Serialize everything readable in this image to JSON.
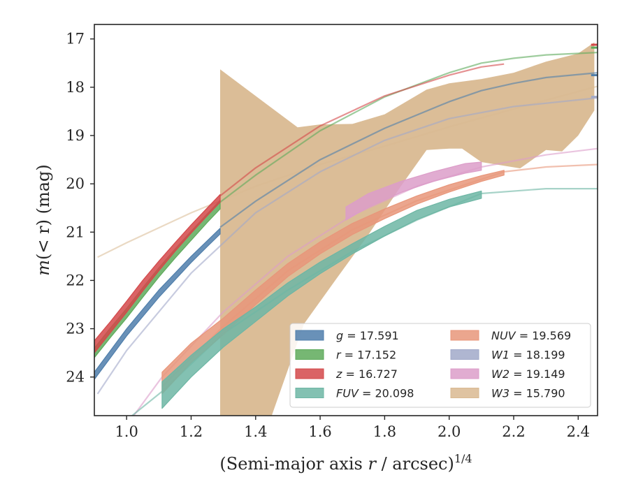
{
  "chart_data": {
    "type": "area",
    "xlabel_main": "(Semi-major axis ",
    "xlabel_var": "r",
    "xlabel_unit": " / arcsec)",
    "xlabel_exp": "1/4",
    "ylabel_main": "m",
    "ylabel_rest": "(< r) (mag)",
    "xlim": [
      0.9,
      2.46
    ],
    "ylim": [
      24.8,
      16.7
    ],
    "y_inverted": true,
    "grid": false,
    "legend_position": "lower-right",
    "x_ticks": [
      {
        "v": 1.0,
        "label": "1.0"
      },
      {
        "v": 1.2,
        "label": "1.2"
      },
      {
        "v": 1.4,
        "label": "1.4"
      },
      {
        "v": 1.6,
        "label": "1.6"
      },
      {
        "v": 1.8,
        "label": "1.8"
      },
      {
        "v": 2.0,
        "label": "2.0"
      },
      {
        "v": 2.2,
        "label": "2.2"
      },
      {
        "v": 2.4,
        "label": "2.4"
      }
    ],
    "y_ticks": [
      {
        "v": 17,
        "label": "17"
      },
      {
        "v": 18,
        "label": "18"
      },
      {
        "v": 19,
        "label": "19"
      },
      {
        "v": 20,
        "label": "20"
      },
      {
        "v": 21,
        "label": "21"
      },
      {
        "v": 22,
        "label": "22"
      },
      {
        "v": 23,
        "label": "23"
      },
      {
        "v": 24,
        "label": "24"
      }
    ],
    "series": [
      {
        "key": "W3",
        "legend_var": "W3",
        "legend_value": "= 15.790",
        "color": "#d9b991",
        "model": [
          [
            0.91,
            21.52
          ],
          [
            1.0,
            21.22
          ],
          [
            1.2,
            20.6
          ],
          [
            1.4,
            20.05
          ],
          [
            1.6,
            19.6
          ],
          [
            1.8,
            19.22
          ],
          [
            2.0,
            18.82
          ],
          [
            2.2,
            18.45
          ],
          [
            2.46,
            17.98
          ]
        ],
        "band": {
          "upper": [
            [
              1.29,
              17.63
            ],
            [
              1.53,
              18.83
            ],
            [
              1.6,
              18.77
            ],
            [
              1.7,
              18.76
            ],
            [
              1.8,
              18.56
            ],
            [
              1.93,
              18.05
            ],
            [
              2.0,
              17.92
            ],
            [
              2.1,
              17.83
            ],
            [
              2.2,
              17.7
            ],
            [
              2.3,
              17.47
            ],
            [
              2.4,
              17.3
            ],
            [
              2.45,
              17.07
            ]
          ],
          "lower": [
            [
              1.29,
              24.8
            ],
            [
              1.45,
              24.8
            ],
            [
              1.55,
              22.9
            ],
            [
              1.65,
              21.97
            ],
            [
              1.75,
              21.05
            ],
            [
              1.85,
              20.05
            ],
            [
              1.93,
              19.3
            ],
            [
              2.0,
              19.27
            ],
            [
              2.04,
              19.27
            ],
            [
              2.1,
              19.55
            ],
            [
              2.22,
              19.68
            ],
            [
              2.3,
              19.3
            ],
            [
              2.35,
              19.33
            ],
            [
              2.4,
              19.0
            ],
            [
              2.45,
              18.48
            ]
          ]
        }
      },
      {
        "key": "g",
        "legend_var": "g",
        "legend_value": "= 17.591",
        "color": "#4f7eab",
        "model": [
          [
            1.29,
            20.9
          ],
          [
            1.4,
            20.36
          ],
          [
            1.6,
            19.5
          ],
          [
            1.8,
            18.85
          ],
          [
            2.0,
            18.3
          ],
          [
            2.1,
            18.07
          ],
          [
            2.2,
            17.92
          ],
          [
            2.3,
            17.8
          ],
          [
            2.46,
            17.7
          ]
        ],
        "band": {
          "upper": [
            [
              0.9,
              23.9
            ],
            [
              0.95,
              23.45
            ],
            [
              1.0,
              23.0
            ],
            [
              1.05,
              22.6
            ],
            [
              1.1,
              22.2
            ],
            [
              1.15,
              21.85
            ],
            [
              1.2,
              21.5
            ],
            [
              1.25,
              21.18
            ],
            [
              1.29,
              20.92
            ]
          ],
          "lower": [
            [
              0.9,
              24.05
            ],
            [
              0.95,
              23.6
            ],
            [
              1.0,
              23.15
            ],
            [
              1.05,
              22.75
            ],
            [
              1.1,
              22.35
            ],
            [
              1.15,
              21.99
            ],
            [
              1.2,
              21.63
            ],
            [
              1.25,
              21.3
            ],
            [
              1.29,
              21.04
            ]
          ]
        },
        "end_tick": [
          2.44,
          2.46,
          17.75
        ]
      },
      {
        "key": "r",
        "legend_var": "r",
        "legend_value": "= 17.152",
        "color": "#5eaa5b",
        "model": [
          [
            1.29,
            20.38
          ],
          [
            1.4,
            19.82
          ],
          [
            1.6,
            18.9
          ],
          [
            1.8,
            18.2
          ],
          [
            2.0,
            17.7
          ],
          [
            2.1,
            17.5
          ],
          [
            2.2,
            17.4
          ],
          [
            2.3,
            17.33
          ],
          [
            2.46,
            17.28
          ]
        ],
        "band": {
          "upper": [
            [
              0.9,
              23.4
            ],
            [
              0.95,
              22.98
            ],
            [
              1.0,
              22.58
            ],
            [
              1.05,
              22.15
            ],
            [
              1.1,
              21.74
            ],
            [
              1.15,
              21.35
            ],
            [
              1.2,
              20.98
            ],
            [
              1.25,
              20.62
            ],
            [
              1.29,
              20.34
            ]
          ],
          "lower": [
            [
              0.9,
              23.6
            ],
            [
              0.95,
              23.18
            ],
            [
              1.0,
              22.78
            ],
            [
              1.05,
              22.35
            ],
            [
              1.1,
              21.93
            ],
            [
              1.15,
              21.54
            ],
            [
              1.2,
              21.17
            ],
            [
              1.25,
              20.8
            ],
            [
              1.29,
              20.52
            ]
          ]
        },
        "end_tick": [
          2.44,
          2.46,
          17.18
        ]
      },
      {
        "key": "z",
        "legend_var": "z",
        "legend_value": "= 16.727",
        "color": "#d3484a",
        "model": [
          [
            1.29,
            20.25
          ],
          [
            1.4,
            19.67
          ],
          [
            1.6,
            18.8
          ],
          [
            1.8,
            18.18
          ],
          [
            2.0,
            17.75
          ],
          [
            2.1,
            17.58
          ],
          [
            2.17,
            17.52
          ]
        ],
        "band": {
          "upper": [
            [
              0.9,
              23.25
            ],
            [
              0.95,
              22.85
            ],
            [
              1.0,
              22.43
            ],
            [
              1.05,
              22.0
            ],
            [
              1.1,
              21.6
            ],
            [
              1.15,
              21.22
            ],
            [
              1.2,
              20.85
            ],
            [
              1.25,
              20.5
            ],
            [
              1.29,
              20.22
            ]
          ],
          "lower": [
            [
              0.9,
              23.5
            ],
            [
              0.95,
              23.08
            ],
            [
              1.0,
              22.66
            ],
            [
              1.05,
              22.22
            ],
            [
              1.1,
              21.8
            ],
            [
              1.15,
              21.4
            ],
            [
              1.2,
              21.02
            ],
            [
              1.25,
              20.66
            ],
            [
              1.29,
              20.38
            ]
          ]
        },
        "end_tick": [
          2.44,
          2.46,
          17.12
        ]
      },
      {
        "key": "W1",
        "legend_var": "W1",
        "legend_value": "= 18.199",
        "color": "#a1a9c9",
        "model": [
          [
            0.91,
            24.35
          ],
          [
            1.0,
            23.45
          ],
          [
            1.2,
            21.85
          ],
          [
            1.4,
            20.6
          ],
          [
            1.6,
            19.75
          ],
          [
            1.8,
            19.1
          ],
          [
            2.0,
            18.65
          ],
          [
            2.2,
            18.4
          ],
          [
            2.46,
            18.22
          ]
        ],
        "end_tick": [
          2.44,
          2.46,
          18.2
        ]
      },
      {
        "key": "W2",
        "legend_var": "W2",
        "legend_value": "= 19.149",
        "color": "#dc9dc9",
        "model": [
          [
            1.0,
            25.0
          ],
          [
            1.11,
            24.0
          ],
          [
            1.3,
            22.65
          ],
          [
            1.5,
            21.5
          ],
          [
            1.7,
            20.65
          ],
          [
            1.9,
            20.05
          ],
          [
            2.1,
            19.65
          ],
          [
            2.3,
            19.4
          ],
          [
            2.46,
            19.27
          ]
        ],
        "band": {
          "upper": [
            [
              1.68,
              20.48
            ],
            [
              1.75,
              20.2
            ],
            [
              1.85,
              19.95
            ],
            [
              1.95,
              19.75
            ],
            [
              2.05,
              19.58
            ],
            [
              2.1,
              19.55
            ]
          ],
          "lower": [
            [
              1.68,
              20.75
            ],
            [
              1.75,
              20.48
            ],
            [
              1.85,
              20.18
            ],
            [
              1.95,
              19.95
            ],
            [
              2.05,
              19.78
            ],
            [
              2.1,
              19.72
            ]
          ]
        }
      },
      {
        "key": "NUV",
        "legend_var": "NUV",
        "legend_value": "= 19.569",
        "color": "#e8967a",
        "model": [
          [
            1.11,
            24.2
          ],
          [
            1.3,
            22.95
          ],
          [
            1.5,
            21.8
          ],
          [
            1.7,
            20.95
          ],
          [
            1.9,
            20.35
          ],
          [
            2.17,
            19.75
          ],
          [
            2.3,
            19.65
          ],
          [
            2.46,
            19.6
          ]
        ],
        "band": {
          "upper": [
            [
              1.11,
              23.9
            ],
            [
              1.2,
              23.3
            ],
            [
              1.3,
              22.78
            ],
            [
              1.4,
              22.2
            ],
            [
              1.5,
              21.65
            ],
            [
              1.6,
              21.2
            ],
            [
              1.7,
              20.82
            ],
            [
              1.8,
              20.52
            ],
            [
              1.9,
              20.25
            ],
            [
              2.0,
              20.02
            ],
            [
              2.1,
              19.83
            ],
            [
              2.17,
              19.72
            ]
          ],
          "lower": [
            [
              1.11,
              24.35
            ],
            [
              1.2,
              23.7
            ],
            [
              1.3,
              23.12
            ],
            [
              1.4,
              22.5
            ],
            [
              1.5,
              21.92
            ],
            [
              1.6,
              21.45
            ],
            [
              1.7,
              21.05
            ],
            [
              1.8,
              20.72
            ],
            [
              1.9,
              20.42
            ],
            [
              2.0,
              20.17
            ],
            [
              2.1,
              19.95
            ],
            [
              2.17,
              19.82
            ]
          ]
        }
      },
      {
        "key": "FUV",
        "legend_var": "FUV",
        "legend_value": "= 20.098",
        "color": "#6db6a4",
        "model": [
          [
            0.98,
            25.0
          ],
          [
            1.11,
            24.3
          ],
          [
            1.3,
            23.1
          ],
          [
            1.5,
            22.2
          ],
          [
            1.7,
            21.4
          ],
          [
            1.9,
            20.75
          ],
          [
            2.1,
            20.2
          ],
          [
            2.3,
            20.1
          ],
          [
            2.46,
            20.1
          ]
        ],
        "band": {
          "upper": [
            [
              1.11,
              24.1
            ],
            [
              1.2,
              23.55
            ],
            [
              1.3,
              23.0
            ],
            [
              1.4,
              22.55
            ],
            [
              1.5,
              22.05
            ],
            [
              1.6,
              21.62
            ],
            [
              1.7,
              21.24
            ],
            [
              1.8,
              20.88
            ],
            [
              1.9,
              20.55
            ],
            [
              2.0,
              20.32
            ],
            [
              2.1,
              20.15
            ]
          ],
          "lower": [
            [
              1.11,
              24.65
            ],
            [
              1.2,
              24.0
            ],
            [
              1.3,
              23.38
            ],
            [
              1.4,
              22.85
            ],
            [
              1.5,
              22.32
            ],
            [
              1.6,
              21.86
            ],
            [
              1.7,
              21.45
            ],
            [
              1.8,
              21.08
            ],
            [
              1.9,
              20.74
            ],
            [
              2.0,
              20.48
            ],
            [
              2.1,
              20.3
            ]
          ]
        }
      }
    ],
    "legend_order": [
      "g",
      "NUV",
      "r",
      "W1",
      "z",
      "W2",
      "FUV",
      "W3"
    ]
  }
}
